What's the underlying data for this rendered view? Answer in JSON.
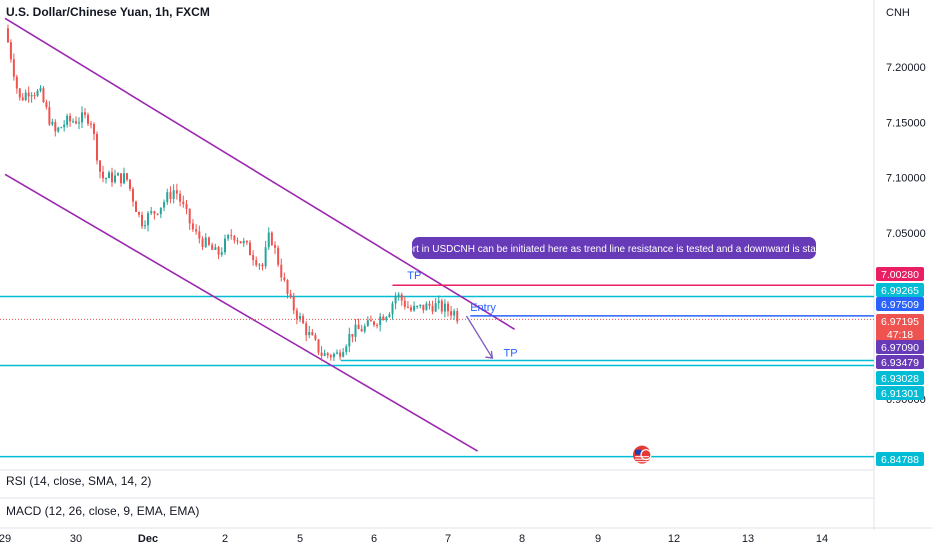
{
  "title": "U.S. Dollar/Chinese Yuan, 1h, FXCM",
  "currency": "CNH",
  "indicators": [
    {
      "label": "RSI (14, close, SMA, 14, 2)"
    },
    {
      "label": "MACD (12, 26, close, 9, EMA, EMA)"
    }
  ],
  "colors": {
    "up": "#26a69a",
    "down": "#ef5350",
    "channel": "#9c27b0",
    "level": "#00bcd4",
    "target": "#e91e63",
    "entry": "#2962ff",
    "annotation_bg": "#673ab7"
  },
  "annotation": {
    "text": "Short in USDCNH can be initiated here as trend line resistance is tested and a downward is started"
  },
  "drawing_labels": {
    "tp_upper": "TP",
    "entry": "Entry",
    "tp_lower": "TP"
  },
  "chart_data": {
    "type": "candlestick",
    "title": "U.S. Dollar/Chinese Yuan, 1h, FXCM",
    "y_range": [
      6.84,
      7.25
    ],
    "y_ticks": [
      {
        "value": 7.2,
        "label": "7.20000"
      },
      {
        "value": 7.15,
        "label": "7.15000"
      },
      {
        "value": 7.1,
        "label": "7.10000"
      },
      {
        "value": 7.05,
        "label": "7.05000"
      },
      {
        "value": 6.9,
        "label": "6.90000"
      }
    ],
    "x_ticks": [
      "29",
      "30",
      "Dec",
      "2",
      "5",
      "6",
      "7",
      "8",
      "9",
      "12",
      "13",
      "14"
    ],
    "x_range_days": [
      0,
      11
    ],
    "x_tick_days": [
      0,
      1,
      2,
      3,
      4,
      5,
      6,
      7,
      8,
      9,
      10,
      11
    ],
    "price_tags": [
      {
        "label": "7.00280",
        "value": 7.0028,
        "color": "#e91e63"
      },
      {
        "label": "6.99265",
        "value": 6.99265,
        "color": "#00bcd4"
      },
      {
        "label": "6.97509",
        "value": 6.97509,
        "color": "#2962ff"
      },
      {
        "label": "6.97195",
        "value": 6.97195,
        "color": "#ef5350",
        "sublabel": "47:18"
      },
      {
        "label": "6.97090",
        "value": 6.9709,
        "color": "#673ab7"
      },
      {
        "label": "6.93479",
        "value": 6.93479,
        "color": "#673ab7"
      },
      {
        "label": "6.93028",
        "value": 6.93028,
        "color": "#00bcd4"
      },
      {
        "label": "6.91301",
        "value": 6.91301,
        "color": "#00bcd4"
      },
      {
        "label": "6.84788",
        "value": 6.84788,
        "color": "#00bcd4"
      }
    ],
    "horizontal_levels": [
      6.99265,
      6.93028,
      6.84788
    ],
    "tp_upper": 7.0028,
    "entry": 6.97509,
    "tp_lower": 6.93479,
    "last_price": 6.97195,
    "channel": {
      "upper": [
        {
          "day": 0.0,
          "price": 7.244
        },
        {
          "day": 6.9,
          "price": 6.963
        }
      ],
      "lower": [
        {
          "day": 0.0,
          "price": 7.103
        },
        {
          "day": 6.4,
          "price": 6.853
        }
      ]
    },
    "close_path": [
      {
        "day": 0.0,
        "price": 7.235
      },
      {
        "day": 0.1,
        "price": 7.205
      },
      {
        "day": 0.2,
        "price": 7.17
      },
      {
        "day": 0.35,
        "price": 7.18
      },
      {
        "day": 0.5,
        "price": 7.175
      },
      {
        "day": 0.7,
        "price": 7.14
      },
      {
        "day": 0.85,
        "price": 7.15
      },
      {
        "day": 1.2,
        "price": 7.155
      },
      {
        "day": 1.35,
        "price": 7.1
      },
      {
        "day": 1.7,
        "price": 7.1
      },
      {
        "day": 1.9,
        "price": 7.06
      },
      {
        "day": 2.1,
        "price": 7.07
      },
      {
        "day": 2.35,
        "price": 7.09
      },
      {
        "day": 2.6,
        "price": 7.05
      },
      {
        "day": 2.9,
        "price": 7.03
      },
      {
        "day": 3.1,
        "price": 7.05
      },
      {
        "day": 3.25,
        "price": 7.04
      },
      {
        "day": 3.5,
        "price": 7.02
      },
      {
        "day": 3.6,
        "price": 7.05
      },
      {
        "day": 3.85,
        "price": 6.99
      },
      {
        "day": 4.1,
        "price": 6.96
      },
      {
        "day": 4.3,
        "price": 6.94
      },
      {
        "day": 4.5,
        "price": 6.94
      },
      {
        "day": 4.7,
        "price": 6.96
      },
      {
        "day": 4.9,
        "price": 6.965
      },
      {
        "day": 5.0,
        "price": 6.97
      },
      {
        "day": 5.2,
        "price": 6.98
      },
      {
        "day": 5.3,
        "price": 6.995
      },
      {
        "day": 5.5,
        "price": 6.98
      },
      {
        "day": 5.8,
        "price": 6.985
      },
      {
        "day": 6.1,
        "price": 6.978
      },
      {
        "day": 6.15,
        "price": 6.972
      }
    ]
  }
}
